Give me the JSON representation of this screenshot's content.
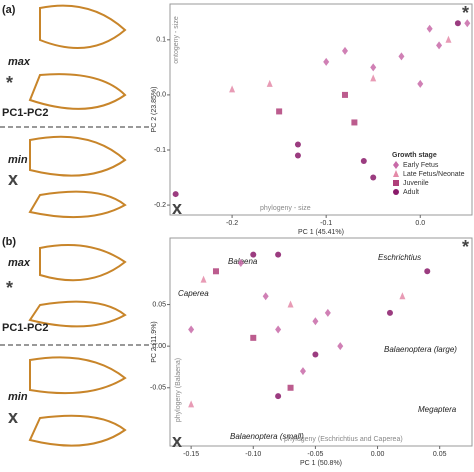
{
  "panels": [
    {
      "label": "(a)",
      "max": "max",
      "max_symbol": "*",
      "axis": "PC1-PC2",
      "min": "min",
      "min_symbol": "x"
    },
    {
      "label": "(b)",
      "max": "max",
      "max_symbol": "*",
      "axis": "PC1-PC2",
      "min": "min",
      "min_symbol": "x"
    }
  ],
  "chart_data": [
    {
      "type": "scatter",
      "x_label": "PC 1 (45.41%)",
      "y_label": "PC 2 (23.85%)",
      "xlim": [
        -0.266,
        0.055
      ],
      "ylim": [
        -0.218,
        0.165
      ],
      "xticks": [
        -0.2,
        -0.1,
        {
          "value": 0,
          "label": "0.0"
        }
      ],
      "yticks": [
        -0.2,
        -0.1,
        {
          "value": 0,
          "label": "0.0"
        },
        0.1
      ],
      "annotations": [
        "ontogeny - size",
        "phylogeny - size",
        "*",
        "x"
      ],
      "legend_title": "Growth stage",
      "legend": "lower right",
      "series": [
        {
          "name": "Early Fetus",
          "marker": "diamond",
          "color": "#c86aa8",
          "x": [
            0.01,
            0.02,
            0.05,
            -0.02,
            -0.05,
            0.0,
            -0.08,
            -0.1
          ],
          "y": [
            0.12,
            0.09,
            0.13,
            0.07,
            0.05,
            0.02,
            0.08,
            0.06
          ]
        },
        {
          "name": "Late Fetus/Neonate",
          "marker": "triangle",
          "color": "#e48aa8",
          "x": [
            -0.16,
            -0.2,
            -0.05,
            0.03
          ],
          "y": [
            0.02,
            0.01,
            0.03,
            0.1
          ]
        },
        {
          "name": "Juvenile",
          "marker": "square",
          "color": "#b0407a",
          "x": [
            -0.08,
            -0.15,
            -0.07
          ],
          "y": [
            0.0,
            -0.03,
            -0.05
          ]
        },
        {
          "name": "Adult",
          "marker": "circle",
          "color": "#8a1a6a",
          "x": [
            -0.26,
            -0.13,
            -0.13,
            -0.06,
            -0.05,
            0.04
          ],
          "y": [
            -0.18,
            -0.09,
            -0.11,
            -0.12,
            -0.15,
            0.13
          ]
        }
      ]
    },
    {
      "type": "scatter",
      "x_label": "PC 1 (50.8%)",
      "y_label": "PC 2 (11.9%)",
      "xlim": [
        -0.167,
        0.076
      ],
      "ylim": [
        -0.12,
        0.13
      ],
      "xticks": [
        -0.15,
        {
          "value": -0.1,
          "label": "-0.10"
        },
        -0.05,
        {
          "value": 0,
          "label": "0.00"
        },
        0.05
      ],
      "yticks": [
        -0.05,
        {
          "value": 0,
          "label": "0.00"
        },
        0.05
      ],
      "annotations": [
        "Balaena",
        "Caperea",
        "Eschrichtius",
        "Balaenoptera (large)",
        "Megaptera",
        "Balaenoptera (small)",
        "phylogeny (Balaena)",
        "phylogeny (Eschrichtius and Caperea)",
        "*",
        "x"
      ],
      "series": [
        {
          "name": "Early Fetus",
          "marker": "diamond",
          "color": "#c86aa8",
          "x": [
            -0.05,
            -0.04,
            -0.03,
            -0.08,
            -0.09,
            -0.11,
            -0.15,
            -0.06
          ],
          "y": [
            0.03,
            0.04,
            0.0,
            0.02,
            0.06,
            0.1,
            0.02,
            -0.03
          ]
        },
        {
          "name": "Late Fetus/Neonate",
          "marker": "triangle",
          "color": "#e48aa8",
          "x": [
            -0.07,
            -0.14,
            0.02,
            -0.15
          ],
          "y": [
            0.05,
            0.08,
            0.06,
            -0.07
          ]
        },
        {
          "name": "Juvenile",
          "marker": "square",
          "color": "#b0407a",
          "x": [
            -0.1,
            -0.07,
            -0.13
          ],
          "y": [
            0.01,
            -0.05,
            0.09
          ]
        },
        {
          "name": "Adult",
          "marker": "circle",
          "color": "#8a1a6a",
          "x": [
            -0.08,
            0.01,
            0.04,
            -0.08,
            -0.05,
            -0.1
          ],
          "y": [
            0.11,
            0.04,
            0.09,
            -0.06,
            -0.01,
            0.11
          ]
        }
      ]
    }
  ]
}
